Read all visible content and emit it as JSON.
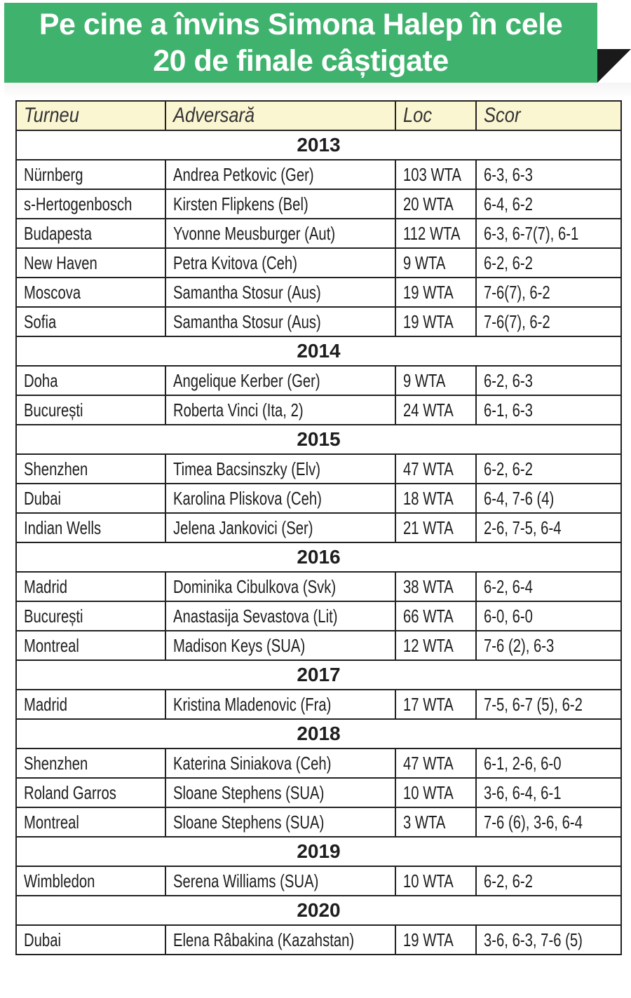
{
  "title": {
    "line1": "Pe cine a învins Simona Halep în cele",
    "line2": "20 de finale câștigate"
  },
  "colors": {
    "banner": "#3fb36d",
    "header_row": "#fbf6d2"
  },
  "table": {
    "headers": [
      "Turneu",
      "Adversară",
      "Loc",
      "Scor"
    ],
    "groups": [
      {
        "year": "2013",
        "rows": [
          [
            "Nürnberg",
            "Andrea Petkovic (Ger)",
            "103 WTA",
            "6-3, 6-3"
          ],
          [
            "s-Hertogenbosch",
            "Kirsten Flipkens (Bel)",
            "20 WTA",
            "6-4, 6-2"
          ],
          [
            "Budapesta",
            "Yvonne Meusburger (Aut)",
            "112 WTA",
            "6-3, 6-7(7), 6-1"
          ],
          [
            "New Haven",
            "Petra Kvitova (Ceh)",
            "9 WTA",
            "6-2, 6-2"
          ],
          [
            "Moscova",
            "Samantha Stosur (Aus)",
            "19 WTA",
            "7-6(7), 6-2"
          ],
          [
            "Sofia",
            "Samantha Stosur (Aus)",
            "19 WTA",
            "7-6(7), 6-2"
          ]
        ]
      },
      {
        "year": "2014",
        "rows": [
          [
            "Doha",
            "Angelique Kerber (Ger)",
            "9 WTA",
            "6-2, 6-3"
          ],
          [
            "București",
            "Roberta Vinci (Ita, 2)",
            "24 WTA",
            "6-1, 6-3"
          ]
        ]
      },
      {
        "year": "2015",
        "rows": [
          [
            "Shenzhen",
            "Timea Bacsinszky (Elv)",
            "47 WTA",
            "6-2, 6-2"
          ],
          [
            "Dubai",
            "Karolina Pliskova (Ceh)",
            "18 WTA",
            "6-4, 7-6 (4)"
          ],
          [
            "Indian Wells",
            "Jelena Jankovici (Ser)",
            "21 WTA",
            "2-6, 7-5, 6-4"
          ]
        ]
      },
      {
        "year": "2016",
        "rows": [
          [
            "Madrid",
            "Dominika Cibulkova (Svk)",
            "38 WTA",
            "6-2, 6-4"
          ],
          [
            "București",
            "Anastasija Sevastova (Lit)",
            "66 WTA",
            "6-0, 6-0"
          ],
          [
            "Montreal",
            "Madison Keys (SUA)",
            "12 WTA",
            "7-6 (2), 6-3"
          ]
        ]
      },
      {
        "year": "2017",
        "rows": [
          [
            "Madrid",
            "Kristina Mladenovic (Fra)",
            "17 WTA",
            "7-5, 6-7 (5), 6-2"
          ]
        ]
      },
      {
        "year": "2018",
        "rows": [
          [
            "Shenzhen",
            "Katerina Siniakova (Ceh)",
            "47 WTA",
            "6-1, 2-6, 6-0"
          ],
          [
            "Roland Garros",
            "Sloane Stephens (SUA)",
            "10 WTA",
            "3-6, 6-4, 6-1"
          ],
          [
            "Montreal",
            "Sloane Stephens (SUA)",
            "3 WTA",
            "7-6 (6), 3-6, 6-4"
          ]
        ]
      },
      {
        "year": "2019",
        "rows": [
          [
            "Wimbledon",
            "Serena Williams (SUA)",
            "10 WTA",
            "6-2, 6-2"
          ]
        ]
      },
      {
        "year": "2020",
        "rows": [
          [
            "Dubai",
            "Elena Râbakina (Kazahstan)",
            "19 WTA",
            "3-6, 6-3, 7-6 (5)"
          ]
        ]
      }
    ]
  }
}
